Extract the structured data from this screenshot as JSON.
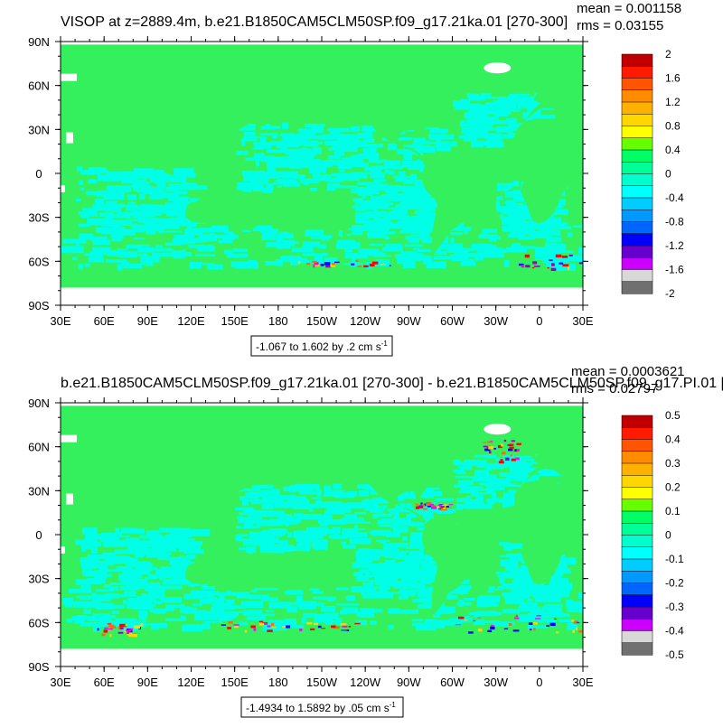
{
  "colors": {
    "land": "#ffffff",
    "frame": "#000000",
    "extreme_pos": [
      "#ff0000",
      "#ff6b00",
      "#ffd700"
    ],
    "extreme_neg": [
      "#0000ff",
      "#9900cc",
      "#ff00ff"
    ]
  },
  "chart_data": [
    {
      "type": "heatmap",
      "title": "VISOP at z=2889.4m, b.e21.B1850CAM5CLM50SP.f09_g17.21ka.01 [270-300]",
      "stats": {
        "mean": "mean = 0.001158",
        "rms": "rms = 0.03155"
      },
      "contour_info": "-1.067 to 1.602 by .2 cm s",
      "contour_info_sup": "-1",
      "x_ticks": [
        "30E",
        "60E",
        "90E",
        "120E",
        "150E",
        "180",
        "150W",
        "120W",
        "90W",
        "60W",
        "30W",
        "0",
        "30E"
      ],
      "y_ticks": [
        "90N",
        "60N",
        "30N",
        "0",
        "30S",
        "60S",
        "90S"
      ],
      "colorbar": {
        "labels": [
          "2",
          "1.6",
          "1.2",
          "0.8",
          "0.4",
          "0",
          "-0.4",
          "-0.8",
          "-1.2",
          "-1.6",
          "-2"
        ],
        "colors": [
          "#c00000",
          "#ff1a00",
          "#ff5500",
          "#ff8c00",
          "#ffb000",
          "#ffd700",
          "#ffff00",
          "#66ff00",
          "#00ff66",
          "#00ff99",
          "#00ffcc",
          "#00ffff",
          "#00ccff",
          "#0099ff",
          "#0066ff",
          "#0000ff",
          "#6600cc",
          "#cc00ff",
          "#d8d8d8",
          "#707070"
        ]
      },
      "dominant_fill": "#34f05c",
      "secondary_fill": "#00ffe6"
    },
    {
      "type": "heatmap",
      "title": "b.e21.B1850CAM5CLM50SP.f09_g17.21ka.01 [270-300] - b.e21.B1850CAM5CLM50SP.f09_g17.PI.01 [",
      "stats": {
        "mean": "mean = 0.0003621",
        "rms": "rms = 0.02797"
      },
      "contour_info": "-1.4934 to 1.5892 by .05 cm s",
      "contour_info_sup": "-1",
      "x_ticks": [
        "30E",
        "60E",
        "90E",
        "120E",
        "150E",
        "180",
        "150W",
        "120W",
        "90W",
        "60W",
        "30W",
        "0",
        "30E"
      ],
      "y_ticks": [
        "90N",
        "60N",
        "30N",
        "0",
        "30S",
        "60S",
        "90S"
      ],
      "colorbar": {
        "labels": [
          "0.5",
          "0.4",
          "0.3",
          "0.2",
          "0.1",
          "0",
          "-0.1",
          "-0.2",
          "-0.3",
          "-0.4",
          "-0.5"
        ],
        "colors": [
          "#c00000",
          "#ff1a00",
          "#ff5500",
          "#ff8c00",
          "#ffb000",
          "#ffd700",
          "#ffff00",
          "#66ff00",
          "#00ff66",
          "#00ff99",
          "#00ffcc",
          "#00ffff",
          "#00ccff",
          "#0099ff",
          "#0066ff",
          "#0000ff",
          "#6600cc",
          "#cc00ff",
          "#d8d8d8",
          "#707070"
        ]
      },
      "dominant_fill": "#34f05c",
      "secondary_fill": "#00ffe6"
    }
  ]
}
